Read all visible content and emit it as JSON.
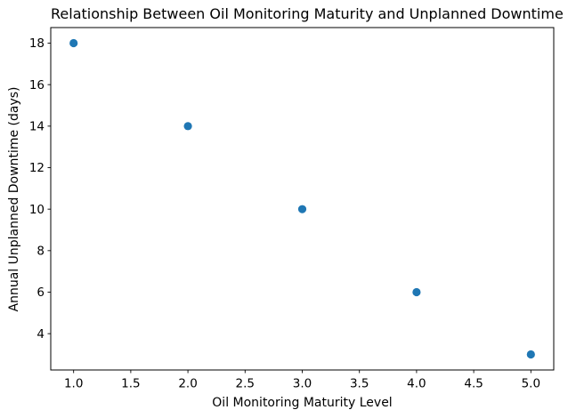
{
  "chart_data": {
    "type": "scatter",
    "title": "Relationship Between Oil Monitoring Maturity and Unplanned Downtime",
    "xlabel": "Oil Monitoring Maturity Level",
    "ylabel": "Annual Unplanned Downtime (days)",
    "points": [
      {
        "x": 1,
        "y": 18
      },
      {
        "x": 2,
        "y": 14
      },
      {
        "x": 3,
        "y": 10
      },
      {
        "x": 4,
        "y": 6
      },
      {
        "x": 5,
        "y": 3
      }
    ],
    "xlim": [
      0.8,
      5.2
    ],
    "ylim": [
      2.25,
      18.75
    ],
    "xticks": [
      1.0,
      1.5,
      2.0,
      2.5,
      3.0,
      3.5,
      4.0,
      4.5,
      5.0
    ],
    "xtick_labels": [
      "1.0",
      "1.5",
      "2.0",
      "2.5",
      "3.0",
      "3.5",
      "4.0",
      "4.5",
      "5.0"
    ],
    "yticks": [
      4,
      6,
      8,
      10,
      12,
      14,
      16,
      18
    ],
    "ytick_labels": [
      "4",
      "6",
      "8",
      "10",
      "12",
      "14",
      "16",
      "18"
    ],
    "marker_color": "#1f77b4",
    "spine_color": "#000000",
    "grid": false,
    "legend_position": "none",
    "background": "#ffffff"
  }
}
